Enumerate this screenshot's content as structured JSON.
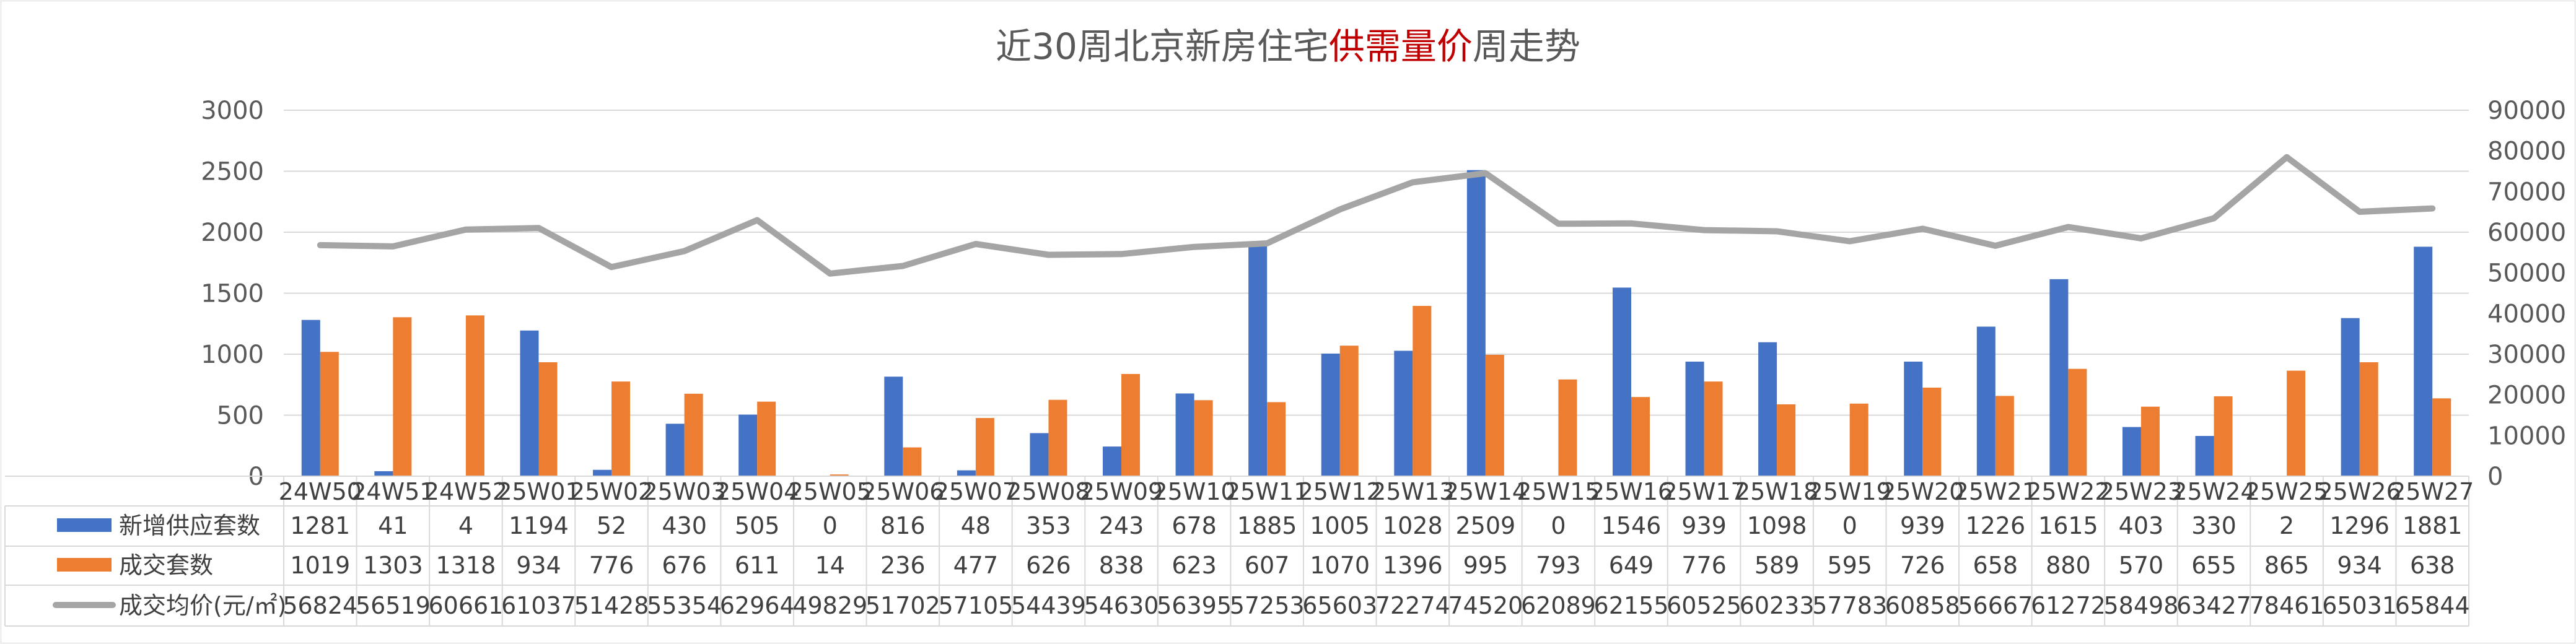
{
  "colors": {
    "supply": "#4472c4",
    "sales": "#ed7d31",
    "price": "#a5a5a5",
    "highlight": "#c00000",
    "grid": "#d9d9d9",
    "text": "#595959"
  },
  "chart_data": {
    "type": "bar",
    "title_prefix": "近30周北京新房住宅",
    "title_highlight": "供需量价",
    "title_suffix": "周走势",
    "categories": [
      "24W50",
      "24W51",
      "24W52",
      "25W01",
      "25W02",
      "25W03",
      "25W04",
      "25W05",
      "25W06",
      "25W07",
      "25W08",
      "25W09",
      "25W10",
      "25W11",
      "25W12",
      "25W13",
      "25W14",
      "25W15",
      "25W16",
      "25W17",
      "25W18",
      "25W19",
      "25W20",
      "25W21",
      "25W22",
      "25W23",
      "25W24",
      "25W25",
      "25W26",
      "25W27"
    ],
    "series": [
      {
        "name": "新增供应套数",
        "type": "bar",
        "axis": "left",
        "values": [
          1281,
          41,
          4,
          1194,
          52,
          430,
          505,
          0,
          816,
          48,
          353,
          243,
          678,
          1885,
          1005,
          1028,
          2509,
          0,
          1546,
          939,
          1098,
          0,
          939,
          1226,
          1615,
          403,
          330,
          2,
          1296,
          1881
        ]
      },
      {
        "name": "成交套数",
        "type": "bar",
        "axis": "left",
        "values": [
          1019,
          1303,
          1318,
          934,
          776,
          676,
          611,
          14,
          236,
          477,
          626,
          838,
          623,
          607,
          1070,
          1396,
          995,
          793,
          649,
          776,
          589,
          595,
          726,
          658,
          880,
          570,
          655,
          865,
          934,
          638
        ]
      },
      {
        "name": "成交均价(元/㎡)",
        "type": "line",
        "axis": "right",
        "values": [
          56824,
          56519,
          60661,
          61037,
          51428,
          55354,
          62964,
          49829,
          51702,
          57105,
          54439,
          54630,
          56395,
          57253,
          65603,
          72274,
          74520,
          62089,
          62155,
          60525,
          60233,
          57783,
          60858,
          56667,
          61272,
          58498,
          63427,
          78461,
          65031,
          65844
        ]
      }
    ],
    "y_left": {
      "min": 0,
      "max": 3000,
      "step": 500,
      "ticks": [
        "0",
        "500",
        "1000",
        "1500",
        "2000",
        "2500",
        "3000"
      ]
    },
    "y_right": {
      "min": 0,
      "max": 90000,
      "step": 10000,
      "ticks": [
        "0",
        "10000",
        "20000",
        "30000",
        "40000",
        "50000",
        "60000",
        "70000",
        "80000",
        "90000"
      ]
    },
    "grid": true,
    "legend": "data-table"
  }
}
